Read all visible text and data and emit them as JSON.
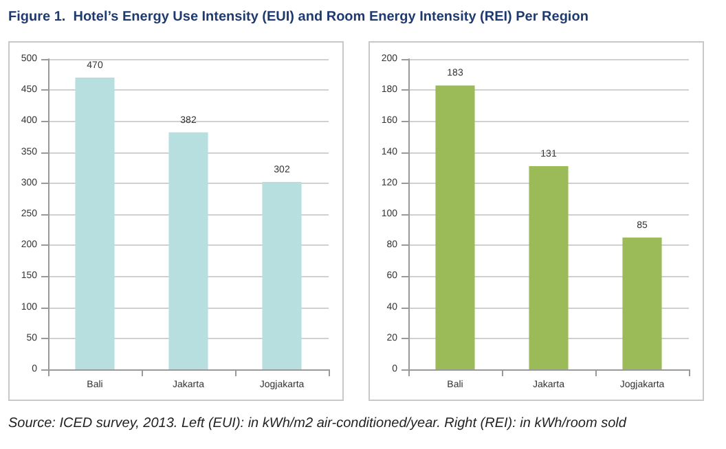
{
  "chart_data": [
    {
      "type": "bar",
      "title": "Figure 1.  Hotel’s Energy Use Intensity (EUI) and Room Energy Intensity (REI) Per Region",
      "categories": [
        "Bali",
        "Jakarta",
        "Jogjakarta"
      ],
      "values": [
        470,
        382,
        302
      ],
      "color": "#b7dfe0",
      "ylim": [
        0,
        500
      ],
      "yticks": [
        0,
        50,
        100,
        150,
        200,
        250,
        300,
        350,
        400,
        450,
        500
      ],
      "grid": "y",
      "data_labels": true
    },
    {
      "type": "bar",
      "categories": [
        "Bali",
        "Jakarta",
        "Jogjakarta"
      ],
      "values": [
        183,
        131,
        85
      ],
      "color": "#9bbb59",
      "ylim": [
        0,
        200
      ],
      "yticks": [
        0,
        20,
        40,
        60,
        80,
        100,
        120,
        140,
        160,
        180,
        200
      ],
      "grid": "y",
      "data_labels": true,
      "annotations": [
        "Source: ICED survey, 2013. Left (EUI): in kWh/m2 air-conditioned/year. Right (REI): in kWh/room sold"
      ]
    }
  ]
}
